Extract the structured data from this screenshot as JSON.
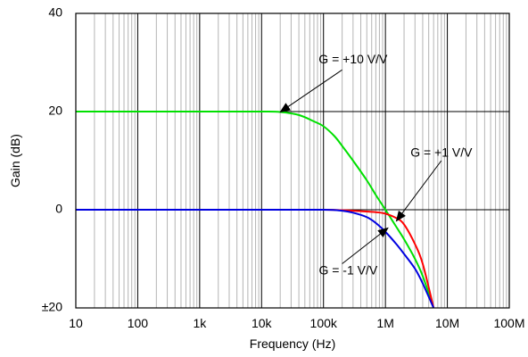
{
  "chart_data": {
    "type": "line",
    "xlabel": "Frequency (Hz)",
    "ylabel": "Gain (dB)",
    "x_scale": "log",
    "xlim": [
      10,
      100000000
    ],
    "ylim": [
      -20,
      40
    ],
    "x_ticks": [
      {
        "value": 10,
        "label": "10"
      },
      {
        "value": 100,
        "label": "100"
      },
      {
        "value": 1000,
        "label": "1k"
      },
      {
        "value": 10000,
        "label": "10k"
      },
      {
        "value": 100000,
        "label": "100k"
      },
      {
        "value": 1000000,
        "label": "1M"
      },
      {
        "value": 10000000,
        "label": "10M"
      },
      {
        "value": 100000000,
        "label": "100M"
      }
    ],
    "y_ticks": [
      {
        "value": 40,
        "label": "40"
      },
      {
        "value": 20,
        "label": "20"
      },
      {
        "value": 0,
        "label": "0"
      },
      {
        "value": -20,
        "label": "±20"
      }
    ],
    "grid": true,
    "series": [
      {
        "color": "#00e000",
        "x": [
          10,
          100,
          1000,
          10000,
          20000,
          40000,
          70000,
          100000,
          150000,
          200000,
          300000,
          500000,
          700000,
          1000000,
          1500000,
          2000000,
          3000000,
          4000000,
          6000000
        ],
        "y": [
          20,
          20,
          20,
          20,
          19.9,
          19.3,
          18,
          17,
          15,
          13,
          10,
          6,
          3,
          0,
          -3.5,
          -6,
          -10,
          -13.5,
          -20
        ]
      },
      {
        "color": "#ff0000",
        "x": [
          10,
          100,
          1000,
          10000,
          100000,
          200000,
          400000,
          700000,
          1000000,
          1500000,
          2000000,
          3000000,
          4000000,
          6000000
        ],
        "y": [
          0,
          0,
          0,
          0,
          0,
          -0.1,
          -0.3,
          -0.5,
          -0.8,
          -1.7,
          -3,
          -7,
          -11,
          -20
        ]
      },
      {
        "color": "#0000e0",
        "x": [
          10,
          100,
          1000,
          10000,
          100000,
          200000,
          300000,
          500000,
          700000,
          1000000,
          1500000,
          2000000,
          3000000,
          4000000,
          6000000
        ],
        "y": [
          0,
          0,
          0,
          0,
          0,
          -0.2,
          -0.6,
          -1.5,
          -2.7,
          -4.5,
          -7,
          -9,
          -12,
          -15,
          -20
        ]
      }
    ],
    "annotations": [
      {
        "text": "G = +10 V/V",
        "text_x": 300000,
        "text_y": 30.5,
        "target_x": 20000,
        "target_y": 19.9,
        "tail_x": 200000,
        "tail_y": 28.5
      },
      {
        "text": "G = +1 V/V",
        "text_x": 8000000,
        "text_y": 11.5,
        "target_x": 1500000,
        "target_y": -2.3,
        "tail_x": 8000000,
        "tail_y": 10
      },
      {
        "text": "G = -1 V/V",
        "text_x": 250000,
        "text_y": -12.5,
        "target_x": 1100000,
        "target_y": -3.7,
        "tail_x": 200000,
        "tail_y": -11
      }
    ]
  }
}
